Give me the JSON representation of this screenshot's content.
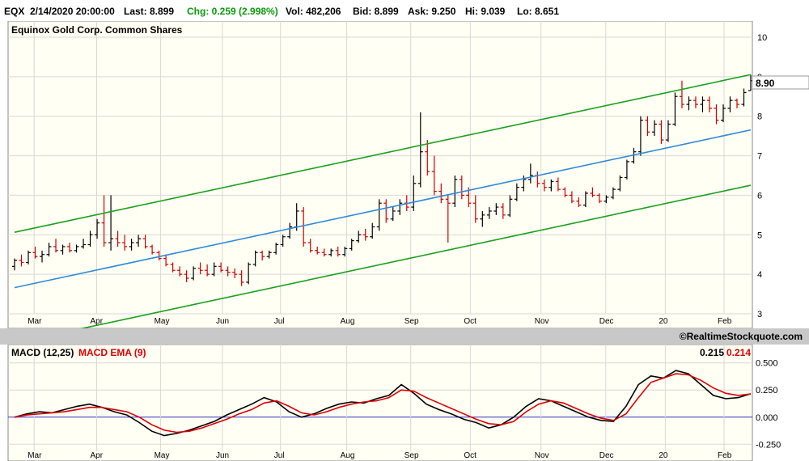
{
  "header": {
    "symbol": "EQX",
    "datetime": "2/14/2020 20:00:00",
    "last": "Last: 8.899",
    "chg": "Chg: 0.259 (2.998%)",
    "vol": "Vol: 482,206",
    "bid": "Bid: 8.899",
    "ask": "Ask: 9.250",
    "hi": "Hi: 9.039",
    "lo": "Lo: 8.651"
  },
  "credit": "©RealtimeStockquote.com",
  "colors": {
    "background": "#fffff4",
    "grid": "#d8d8d8",
    "up_bar": "#000000",
    "down_bar": "#cc0000",
    "channel": "#1aa01a",
    "regression": "#2f8ad8",
    "macd": "#000000",
    "macd_ema": "#dd0000",
    "zero_line": "#3030c0",
    "chg_text": "#0a9a0a"
  },
  "chart_data": [
    {
      "type": "ohlc",
      "title": "Equinox Gold Corp. Common Shares",
      "ylim": [
        3,
        10
      ],
      "y_ticks": [
        "10",
        "9",
        "8",
        "7",
        "6",
        "5",
        "4",
        "3"
      ],
      "x_labels": [
        "Mar",
        "Apr",
        "May",
        "Jun",
        "Jul",
        "Aug",
        "Sep",
        "Oct",
        "Nov",
        "Dec",
        "20",
        "Feb"
      ],
      "last_price_label": "8.90",
      "last_price": 8.9,
      "bars": [
        [
          4.2,
          4.4,
          4.1,
          4.35
        ],
        [
          4.35,
          4.5,
          4.2,
          4.3
        ],
        [
          4.3,
          4.6,
          4.25,
          4.55
        ],
        [
          4.55,
          4.7,
          4.4,
          4.45
        ],
        [
          4.45,
          4.6,
          4.3,
          4.5
        ],
        [
          4.5,
          4.8,
          4.45,
          4.7
        ],
        [
          4.7,
          4.9,
          4.55,
          4.6
        ],
        [
          4.6,
          4.75,
          4.5,
          4.7
        ],
        [
          4.7,
          4.8,
          4.55,
          4.6
        ],
        [
          4.6,
          4.75,
          4.55,
          4.7
        ],
        [
          4.7,
          4.9,
          4.65,
          4.75
        ],
        [
          4.75,
          5.1,
          4.7,
          5.0
        ],
        [
          5.0,
          5.4,
          4.9,
          5.3
        ],
        [
          5.3,
          6.0,
          4.7,
          4.8
        ],
        [
          4.8,
          6.0,
          4.6,
          4.9
        ],
        [
          4.9,
          5.1,
          4.7,
          4.8
        ],
        [
          4.8,
          5.0,
          4.6,
          4.7
        ],
        [
          4.7,
          4.9,
          4.6,
          4.8
        ],
        [
          4.8,
          5.0,
          4.7,
          4.9
        ],
        [
          4.9,
          5.0,
          4.65,
          4.7
        ],
        [
          4.7,
          4.75,
          4.5,
          4.55
        ],
        [
          4.55,
          4.6,
          4.35,
          4.4
        ],
        [
          4.4,
          4.5,
          4.2,
          4.25
        ],
        [
          4.25,
          4.3,
          4.05,
          4.1
        ],
        [
          4.1,
          4.2,
          3.95,
          4.0
        ],
        [
          4.0,
          4.1,
          3.8,
          3.9
        ],
        [
          3.9,
          4.2,
          3.85,
          4.15
        ],
        [
          4.15,
          4.3,
          4.0,
          4.1
        ],
        [
          4.1,
          4.25,
          3.95,
          4.0
        ],
        [
          4.0,
          4.3,
          3.95,
          4.2
        ],
        [
          4.2,
          4.3,
          4.05,
          4.1
        ],
        [
          4.1,
          4.2,
          3.95,
          4.05
        ],
        [
          4.05,
          4.15,
          3.9,
          4.0
        ],
        [
          4.0,
          4.1,
          3.7,
          3.8
        ],
        [
          3.8,
          4.3,
          3.75,
          4.25
        ],
        [
          4.25,
          4.6,
          4.2,
          4.55
        ],
        [
          4.55,
          4.6,
          4.35,
          4.45
        ],
        [
          4.45,
          4.6,
          4.4,
          4.55
        ],
        [
          4.55,
          4.8,
          4.5,
          4.75
        ],
        [
          4.75,
          5.0,
          4.7,
          4.95
        ],
        [
          4.95,
          5.3,
          4.9,
          5.2
        ],
        [
          5.2,
          5.8,
          5.1,
          5.6
        ],
        [
          5.6,
          5.7,
          4.7,
          4.8
        ],
        [
          4.8,
          4.9,
          4.55,
          4.6
        ],
        [
          4.6,
          4.7,
          4.5,
          4.55
        ],
        [
          4.55,
          4.65,
          4.45,
          4.5
        ],
        [
          4.5,
          4.65,
          4.45,
          4.6
        ],
        [
          4.6,
          4.7,
          4.45,
          4.5
        ],
        [
          4.5,
          4.7,
          4.45,
          4.65
        ],
        [
          4.65,
          4.9,
          4.6,
          4.85
        ],
        [
          4.85,
          5.1,
          4.8,
          5.0
        ],
        [
          5.0,
          5.15,
          4.85,
          4.95
        ],
        [
          4.95,
          5.3,
          4.9,
          5.2
        ],
        [
          5.2,
          5.9,
          5.1,
          5.8
        ],
        [
          5.8,
          5.9,
          5.3,
          5.4
        ],
        [
          5.4,
          5.7,
          5.35,
          5.6
        ],
        [
          5.6,
          5.9,
          5.5,
          5.8
        ],
        [
          5.8,
          6.0,
          5.6,
          5.7
        ],
        [
          5.7,
          6.5,
          5.6,
          6.3
        ],
        [
          6.3,
          8.1,
          6.2,
          7.1
        ],
        [
          7.1,
          7.4,
          6.5,
          6.6
        ],
        [
          6.6,
          7.0,
          6.0,
          6.1
        ],
        [
          6.1,
          6.3,
          5.8,
          5.9
        ],
        [
          5.9,
          6.0,
          4.8,
          5.8
        ],
        [
          5.8,
          6.5,
          5.7,
          6.4
        ],
        [
          6.4,
          6.5,
          5.9,
          6.0
        ],
        [
          6.0,
          6.2,
          5.7,
          5.8
        ],
        [
          5.8,
          6.0,
          5.3,
          5.4
        ],
        [
          5.4,
          5.6,
          5.2,
          5.5
        ],
        [
          5.5,
          5.7,
          5.4,
          5.6
        ],
        [
          5.6,
          5.8,
          5.5,
          5.7
        ],
        [
          5.7,
          5.8,
          5.4,
          5.5
        ],
        [
          5.5,
          6.0,
          5.45,
          5.9
        ],
        [
          5.9,
          6.3,
          5.85,
          6.2
        ],
        [
          6.2,
          6.5,
          6.1,
          6.4
        ],
        [
          6.4,
          6.8,
          6.3,
          6.5
        ],
        [
          6.5,
          6.6,
          6.2,
          6.3
        ],
        [
          6.3,
          6.4,
          6.1,
          6.2
        ],
        [
          6.2,
          6.4,
          6.1,
          6.35
        ],
        [
          6.35,
          6.45,
          6.1,
          6.15
        ],
        [
          6.15,
          6.2,
          5.95,
          6.0
        ],
        [
          6.0,
          6.1,
          5.8,
          5.85
        ],
        [
          5.85,
          5.95,
          5.7,
          5.75
        ],
        [
          5.75,
          6.1,
          5.7,
          6.05
        ],
        [
          6.05,
          6.2,
          5.95,
          6.0
        ],
        [
          6.0,
          6.05,
          5.8,
          5.85
        ],
        [
          5.85,
          6.0,
          5.8,
          5.95
        ],
        [
          5.95,
          6.2,
          5.9,
          6.15
        ],
        [
          6.15,
          6.5,
          6.1,
          6.45
        ],
        [
          6.45,
          6.9,
          6.4,
          6.85
        ],
        [
          6.85,
          7.2,
          6.8,
          7.1
        ],
        [
          7.1,
          8.0,
          7.0,
          7.9
        ],
        [
          7.9,
          8.0,
          7.5,
          7.6
        ],
        [
          7.6,
          7.9,
          7.5,
          7.8
        ],
        [
          7.8,
          7.9,
          7.3,
          7.4
        ],
        [
          7.4,
          7.9,
          7.35,
          7.8
        ],
        [
          7.8,
          8.6,
          7.75,
          8.5
        ],
        [
          8.5,
          8.9,
          8.2,
          8.3
        ],
        [
          8.3,
          8.5,
          8.15,
          8.4
        ],
        [
          8.4,
          8.5,
          8.2,
          8.3
        ],
        [
          8.3,
          8.5,
          8.1,
          8.4
        ],
        [
          8.4,
          8.5,
          8.1,
          8.2
        ],
        [
          8.2,
          8.3,
          7.8,
          7.9
        ],
        [
          7.9,
          8.3,
          7.85,
          8.2
        ],
        [
          8.2,
          8.5,
          8.1,
          8.4
        ],
        [
          8.4,
          8.45,
          8.2,
          8.3
        ],
        [
          8.3,
          8.7,
          8.25,
          8.6
        ],
        [
          8.65,
          9.05,
          8.65,
          8.9
        ]
      ]
    },
    {
      "type": "line",
      "title": "MACD (12,25)",
      "legend": [
        "MACD (12,25)",
        "MACD EMA (9)"
      ],
      "value_labels": [
        "0.215",
        "0.214"
      ],
      "ylim": [
        -0.3,
        0.55
      ],
      "y_ticks": [
        "0.500",
        "0.250",
        "0.000",
        "-0.250"
      ],
      "x_labels": [
        "Mar",
        "Apr",
        "May",
        "Jun",
        "Jul",
        "Aug",
        "Sep",
        "Oct",
        "Nov",
        "Dec",
        "20",
        "Feb"
      ],
      "series": [
        {
          "name": "MACD (12,25)",
          "values": [
            0.0,
            0.03,
            0.05,
            0.04,
            0.07,
            0.1,
            0.12,
            0.09,
            0.05,
            0.02,
            -0.05,
            -0.13,
            -0.17,
            -0.15,
            -0.12,
            -0.08,
            -0.04,
            0.02,
            0.07,
            0.12,
            0.18,
            0.14,
            0.05,
            0.0,
            0.03,
            0.08,
            0.12,
            0.14,
            0.13,
            0.17,
            0.2,
            0.3,
            0.22,
            0.12,
            0.07,
            0.03,
            -0.02,
            -0.05,
            -0.1,
            -0.07,
            0.0,
            0.1,
            0.17,
            0.15,
            0.1,
            0.05,
            0.0,
            -0.03,
            -0.04,
            0.1,
            0.3,
            0.38,
            0.36,
            0.43,
            0.4,
            0.3,
            0.2,
            0.17,
            0.18,
            0.215
          ]
        },
        {
          "name": "MACD EMA (9)",
          "values": [
            0.0,
            0.02,
            0.03,
            0.04,
            0.05,
            0.07,
            0.09,
            0.09,
            0.07,
            0.05,
            0.0,
            -0.07,
            -0.12,
            -0.14,
            -0.13,
            -0.1,
            -0.06,
            -0.02,
            0.03,
            0.07,
            0.13,
            0.15,
            0.1,
            0.04,
            0.02,
            0.05,
            0.09,
            0.12,
            0.14,
            0.15,
            0.18,
            0.25,
            0.24,
            0.18,
            0.13,
            0.08,
            0.03,
            -0.02,
            -0.06,
            -0.07,
            -0.04,
            0.05,
            0.12,
            0.15,
            0.13,
            0.08,
            0.03,
            -0.01,
            -0.03,
            0.03,
            0.18,
            0.32,
            0.36,
            0.4,
            0.39,
            0.34,
            0.27,
            0.22,
            0.2,
            0.214
          ]
        }
      ]
    }
  ]
}
